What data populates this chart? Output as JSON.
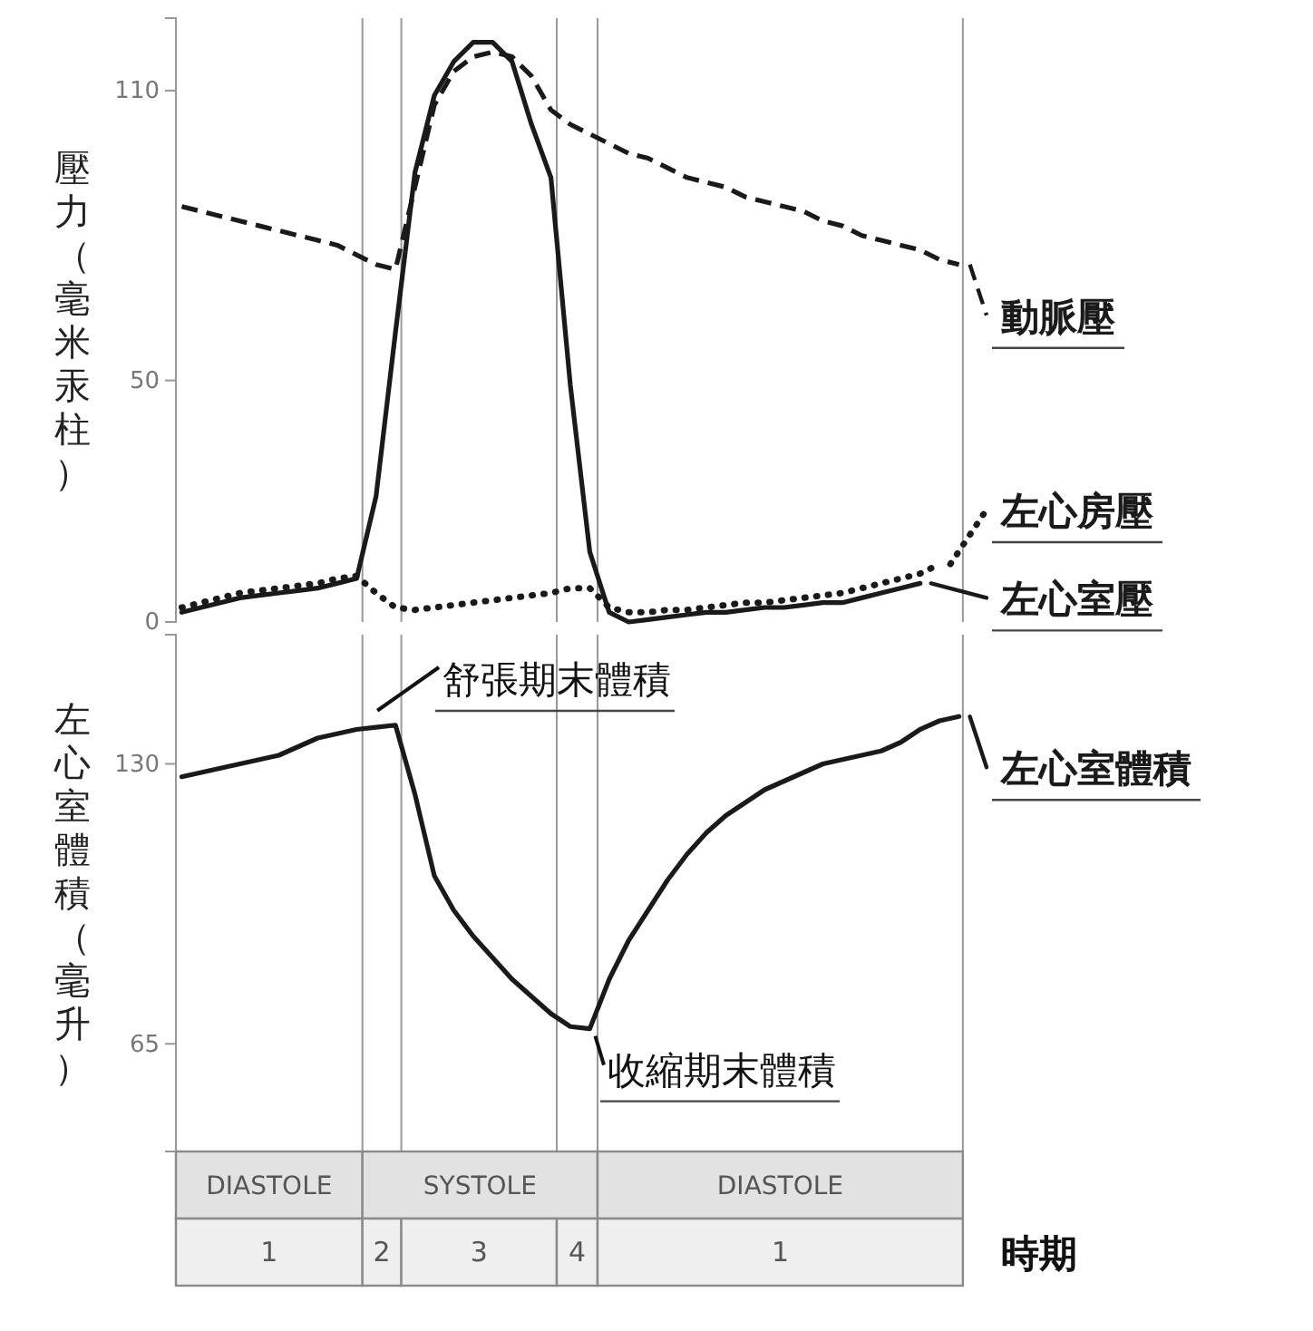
{
  "chart_data": [
    {
      "type": "line",
      "ylabel": "壓力（毫米汞柱）",
      "categories": [
        null,
        null,
        null,
        null,
        null,
        null,
        null,
        null,
        null,
        null,
        null,
        null,
        null,
        null,
        null,
        null,
        null,
        null,
        null,
        null,
        null,
        null,
        null,
        null,
        null,
        null,
        null,
        null,
        null,
        null,
        null,
        null,
        null,
        null,
        null,
        null,
        null,
        null,
        null,
        null,
        null
      ],
      "ylim": [
        0,
        125
      ],
      "yticks": [
        0,
        50,
        110
      ],
      "tick_labels": "y",
      "grid": false,
      "legend": "right",
      "series": [
        {
          "name": "動脈壓",
          "color": "#1a1a1a",
          "line_style": "dashed",
          "values": [
            86,
            85,
            84,
            83,
            82,
            81,
            80,
            79,
            78,
            76,
            74,
            73,
            90,
            107,
            114,
            117,
            118,
            117,
            113,
            106,
            103,
            101,
            99,
            97,
            96,
            94,
            92,
            91,
            90,
            88,
            87,
            86,
            85,
            83,
            82,
            80,
            79,
            78,
            77,
            75,
            74
          ]
        },
        {
          "name": "左心房壓",
          "color": "#1a1a1a",
          "line_style": "dotted",
          "values": [
            3,
            4,
            5,
            6,
            6.5,
            7,
            7.5,
            8,
            9,
            9.5,
            6,
            3,
            2.5,
            3,
            3.5,
            4,
            4.5,
            5,
            5.5,
            6,
            7,
            7,
            3,
            2,
            2,
            2.5,
            2.5,
            3,
            3.5,
            4,
            4,
            4.5,
            5,
            5.5,
            6,
            7,
            8,
            9,
            10,
            12,
            null
          ]
        },
        {
          "name": "左心室壓",
          "color": "#1a1a1a",
          "line_style": "solid",
          "values": [
            2,
            3,
            4,
            5,
            5.5,
            6,
            6.5,
            7,
            8,
            9,
            26,
            60,
            93,
            109,
            116,
            120,
            120,
            116,
            103,
            92,
            49,
            14.5,
            2,
            0,
            0.5,
            1,
            1.5,
            2,
            2,
            2.5,
            3,
            3,
            3.5,
            4,
            4,
            5,
            6,
            7,
            8,
            null,
            null
          ]
        }
      ]
    },
    {
      "type": "line",
      "ylabel": "左心室體積（毫升）",
      "categories": [
        null,
        null,
        null,
        null,
        null,
        null,
        null,
        null,
        null,
        null,
        null,
        null,
        null,
        null,
        null,
        null,
        null,
        null,
        null,
        null,
        null,
        null,
        null,
        null,
        null,
        null,
        null,
        null,
        null,
        null,
        null,
        null,
        null,
        null,
        null,
        null,
        null,
        null,
        null,
        null,
        null
      ],
      "ylim": [
        40,
        160
      ],
      "yticks": [
        65,
        130
      ],
      "tick_labels": "y",
      "grid": false,
      "legend": "right",
      "series": [
        {
          "name": "左心室體積",
          "color": "#1a1a1a",
          "line_style": "solid",
          "values": [
            127,
            128,
            129,
            130,
            131,
            132,
            134,
            136,
            137,
            138,
            138.5,
            139,
            123,
            104,
            96,
            90,
            85,
            80,
            76,
            72,
            69,
            68.5,
            80,
            89,
            96,
            103,
            109,
            114,
            118,
            121,
            124,
            126,
            128,
            130,
            131,
            132,
            133,
            135,
            138,
            140,
            141
          ]
        }
      ],
      "annotations": [
        "舒張期末體積",
        "收縮期末體積",
        "DIASTOLE",
        "SYSTOLE",
        "DIASTOLE",
        "1",
        "2",
        "3",
        "4",
        "1",
        "時期"
      ]
    }
  ]
}
